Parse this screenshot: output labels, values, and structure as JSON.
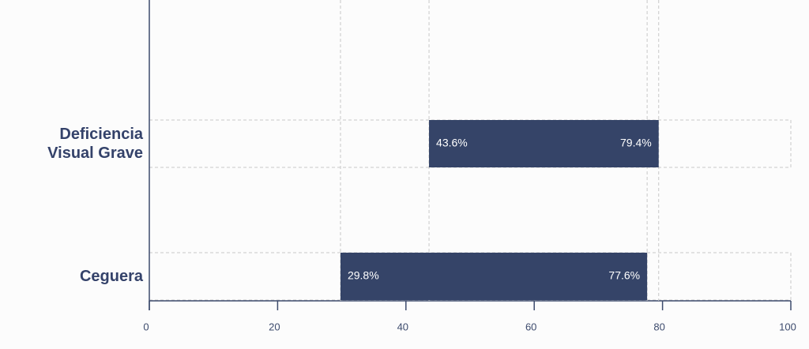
{
  "chart_data": {
    "type": "range-bar",
    "categories": [
      "Deficiencia Visual Grave",
      "Ceguera"
    ],
    "low": {
      "values": [
        43.6,
        29.8
      ],
      "value_labels": [
        "43.6%",
        "29.8%"
      ]
    },
    "high": {
      "values": [
        79.4,
        77.6
      ],
      "value_labels": [
        "79.4%",
        "77.6%"
      ]
    },
    "color": "#354468",
    "xlim": [
      0,
      100
    ],
    "xticks": [
      0,
      20,
      40,
      60,
      80,
      100
    ]
  }
}
